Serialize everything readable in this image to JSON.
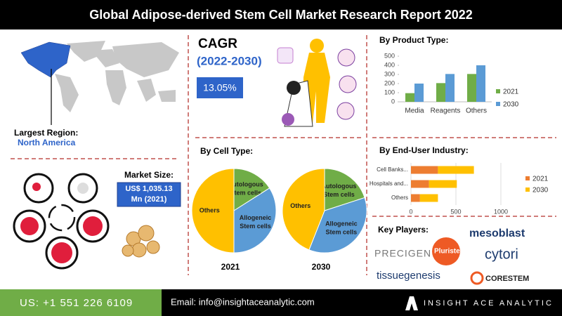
{
  "header": {
    "title": "Global Adipose-derived Stem Cell Market Research Report 2022"
  },
  "region": {
    "label": "Largest Region:",
    "value": "North America"
  },
  "cagr": {
    "title": "CAGR",
    "period": "(2022-2030)",
    "value": "13.05%"
  },
  "market_size": {
    "label": "Market Size:",
    "lines": [
      "US$ 1,035.13",
      "Mn (2021)"
    ]
  },
  "cell_type_heading": "By Cell Type:",
  "chart_data": [
    {
      "type": "bar",
      "title": "By Product Type:",
      "categories": [
        "Media",
        "Reagents",
        "Others"
      ],
      "series": [
        {
          "name": "2021",
          "color": "#70ad47",
          "values": [
            95,
            205,
            305
          ]
        },
        {
          "name": "2030",
          "color": "#5b9bd5",
          "values": [
            200,
            305,
            400
          ]
        }
      ],
      "ylim": [
        0,
        500
      ],
      "yticks": [
        0,
        100,
        200,
        300,
        400,
        500
      ],
      "legend": "right"
    },
    {
      "type": "pie",
      "title": "2021",
      "categories": [
        "Autologous Stem cells",
        "Allogeneic Stem cells",
        "Others"
      ],
      "values": [
        16,
        34,
        50
      ],
      "colors": [
        "#70ad47",
        "#5b9bd5",
        "#ffc000"
      ]
    },
    {
      "type": "pie",
      "title": "2030",
      "categories": [
        "Autologous Stem cells",
        "Allogeneic Stem cells",
        "Others"
      ],
      "values": [
        20,
        36,
        44
      ],
      "colors": [
        "#70ad47",
        "#5b9bd5",
        "#ffc000"
      ]
    },
    {
      "type": "hbar-stacked",
      "title": "By End-User Industry:",
      "categories": [
        "Cell Banks...",
        "Hospitals and...",
        "Others"
      ],
      "series": [
        {
          "name": "2021",
          "color": "#ed7d31",
          "values": [
            300,
            200,
            100
          ]
        },
        {
          "name": "2030",
          "color": "#ffc000",
          "values": [
            400,
            310,
            200
          ]
        }
      ],
      "xlim": [
        0,
        1000
      ],
      "xticks": [
        0,
        500,
        1000
      ],
      "grid": true,
      "legend": "right"
    }
  ],
  "key_players": {
    "title": "Key Players:",
    "logos": [
      "mesoblast",
      "PRECIGEN",
      "Pluristem",
      "cytori",
      "tissuegenesis",
      "CORESTEM"
    ]
  },
  "footer": {
    "phone": "US: +1 551 226 6109",
    "email": "Email: info@insightaceanalytic.com",
    "brand": "INSIGHT ACE ANALYTIC"
  }
}
